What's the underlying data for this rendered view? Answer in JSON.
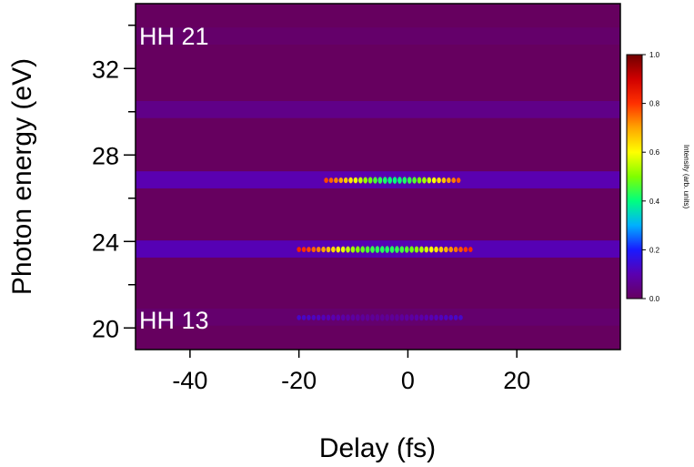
{
  "chart_data": {
    "type": "heatmap",
    "xlabel": "Delay (fs)",
    "ylabel": "Photon energy (eV)",
    "xlim": [
      -50,
      39
    ],
    "ylim": [
      19,
      35
    ],
    "x_ticks": [
      -40,
      -20,
      0,
      20
    ],
    "x_tick_labels": [
      "-40",
      "-20",
      "0",
      "20"
    ],
    "y_ticks": [
      20,
      24,
      28,
      32
    ],
    "y_tick_labels": [
      "20",
      "24",
      "28",
      "32"
    ],
    "y_minor_ticks": [
      22,
      26,
      30,
      34
    ],
    "annotations": [
      "HH 21",
      "HH 13"
    ],
    "colorbar": {
      "label": "Intensity (arb. units)",
      "range": [
        0.0,
        1.0
      ],
      "ticks": [
        0.0,
        0.2,
        0.4,
        0.6,
        0.8,
        1.0
      ],
      "tick_labels": [
        "0.0",
        "0.2",
        "0.4",
        "0.6",
        "0.8",
        "1.0"
      ],
      "colormap": "rainbow (purple-blue-cyan-green-yellow-red-darkred)"
    },
    "background_color": "#66005f",
    "harmonic_bands": [
      {
        "energy": 20.5,
        "peak_intensity": 0.15,
        "oscillating_region": [
          -20,
          10
        ]
      },
      {
        "energy": 23.65,
        "peak_intensity": 0.95,
        "oscillating_region": [
          -20,
          12
        ]
      },
      {
        "energy": 26.85,
        "peak_intensity": 0.9,
        "oscillating_region": [
          -15,
          10
        ]
      },
      {
        "energy": 30.1,
        "peak_intensity": 0.45,
        "oscillating_region": null
      },
      {
        "energy": 33.5,
        "peak_intensity": 0.12,
        "oscillating_region": null
      }
    ]
  }
}
